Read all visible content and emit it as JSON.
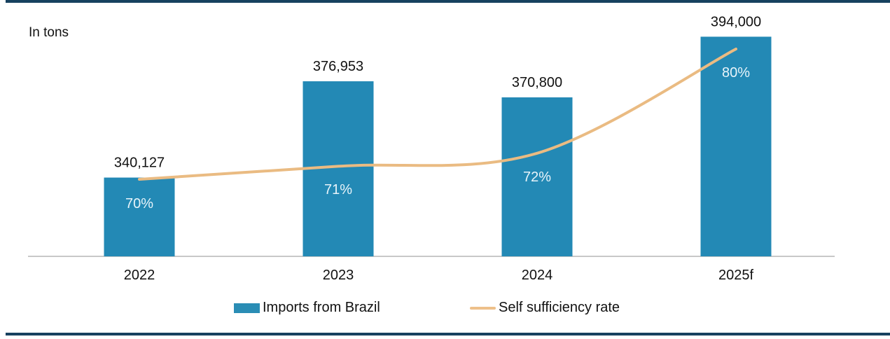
{
  "unit_label": "In tons",
  "colors": {
    "bar": "#2389b5",
    "line": "#eabb82",
    "frame": "#17415f",
    "axis": "#c8c8c8"
  },
  "chart_data": {
    "type": "bar",
    "title": "",
    "xlabel": "",
    "ylabel": "In tons",
    "categories": [
      "2022",
      "2023",
      "2024",
      "2025f"
    ],
    "ylim": [
      310000,
      400000
    ],
    "grid": false,
    "legend_position": "bottom",
    "series": [
      {
        "name": "Imports from Brazil",
        "type": "bar",
        "values": [
          340127,
          376953,
          370800,
          394000
        ],
        "labels": [
          "340,127",
          "376,953",
          "370,800",
          "394,000"
        ]
      },
      {
        "name": "Self sufficiency rate",
        "type": "line",
        "smooth": true,
        "values": [
          70,
          71,
          72,
          80
        ],
        "labels": [
          "70%",
          "71%",
          "72%",
          "80%"
        ]
      }
    ]
  },
  "legend": [
    {
      "label": "Imports from Brazil",
      "kind": "bar"
    },
    {
      "label": "Self sufficiency rate",
      "kind": "line"
    }
  ]
}
